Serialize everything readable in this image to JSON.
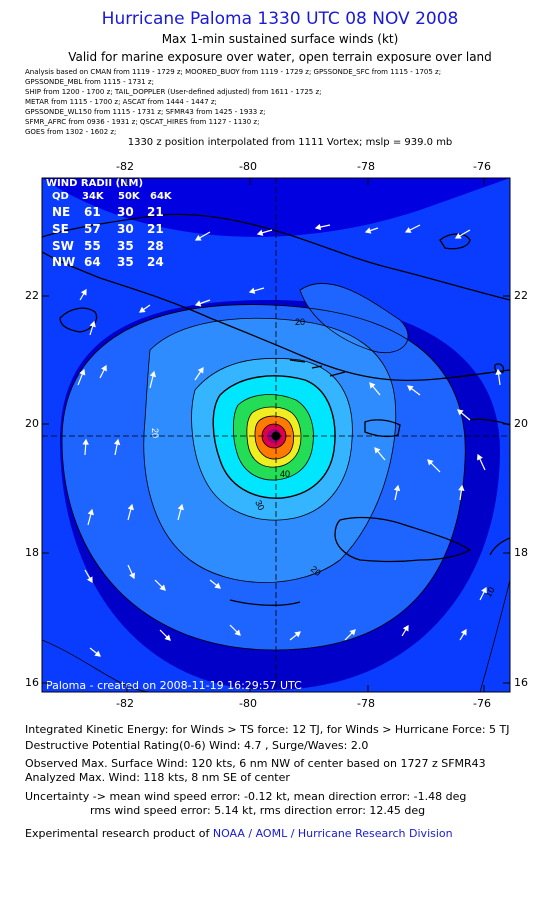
{
  "title": "Hurricane Paloma 1330 UTC 08 NOV 2008",
  "subtitle1": "Max 1-min sustained surface winds (kt)",
  "subtitle2": "Valid for marine exposure over water, open terrain exposure over land",
  "sources": [
    "Analysis based on  CMAN from 1119 - 1729 z;  MOORED_BUOY from 1119 - 1729 z;  GPSSONDE_SFC from 1115 - 1705 z;",
    "GPSSONDE_MBL from 1115 - 1731 z;",
    "SHIP from 1200 - 1700 z;  TAIL_DOPPLER (User-defined adjusted) from 1611 - 1725 z;",
    "METAR from 1115 - 1700 z;  ASCAT from 1444 - 1447 z;",
    "GPSSONDE_WL150 from 1115 - 1731 z;  SFMR43 from 1425 - 1933 z;",
    "SFMR_AFRC from 0936 - 1931 z;  QSCAT_HIRES from 1127 - 1130 z;",
    "GOES from 1302 - 1602 z;"
  ],
  "position_note": "1330 z position interpolated from 1111 Vortex; mslp = 939.0 mb",
  "map": {
    "lon_ticks": [
      "-82",
      "-80",
      "-78",
      "-76"
    ],
    "lat_ticks": [
      "22",
      "20",
      "18",
      "16"
    ],
    "contour_labels": [
      "20",
      "30",
      "40",
      "20",
      "20",
      "10"
    ],
    "credit": "Paloma - created on 2008-11-19 16:29:57 UTC",
    "center_color": "#000000",
    "ocean_colors": [
      "#0000c8",
      "#0a3cff",
      "#1e64ff",
      "#2f8cff",
      "#35b4ff",
      "#00e6ff",
      "#22dd55",
      "#eeee22",
      "#ff7a00",
      "#e0004a",
      "#a0007a"
    ]
  },
  "wind_radii": {
    "title": "WIND RADII (NM)",
    "header": [
      "QD",
      "34K",
      "50K",
      "64K"
    ],
    "rows": [
      [
        "NE",
        "61",
        "30",
        "21"
      ],
      [
        "SE",
        "57",
        "30",
        "21"
      ],
      [
        "SW",
        "55",
        "35",
        "28"
      ],
      [
        "NW",
        "64",
        "35",
        "24"
      ]
    ]
  },
  "footer": {
    "ike": "Integrated Kinetic Energy:  for Winds > TS force: 12 TJ,  for Winds > Hurricane Force: 5 TJ",
    "dpr": "Destructive Potential Rating(0-6)   Wind: 4.7 , Surge/Waves: 2.0",
    "observed": "Observed Max. Surface Wind: 120 kts, 6 nm NW of center based on 1727 z SFMR43",
    "analyzed": "Analyzed Max. Wind: 118 kts, 8 nm SE of center",
    "uncert1": "Uncertainty -> mean wind speed error:  -0.12 kt,   mean direction error:  -1.48 deg",
    "uncert2": "rms wind speed error: 5.14 kt,   rms direction error: 12.45 deg",
    "product_prefix": "Experimental research product of ",
    "product_org": "NOAA / AOML / Hurricane Research Division"
  }
}
